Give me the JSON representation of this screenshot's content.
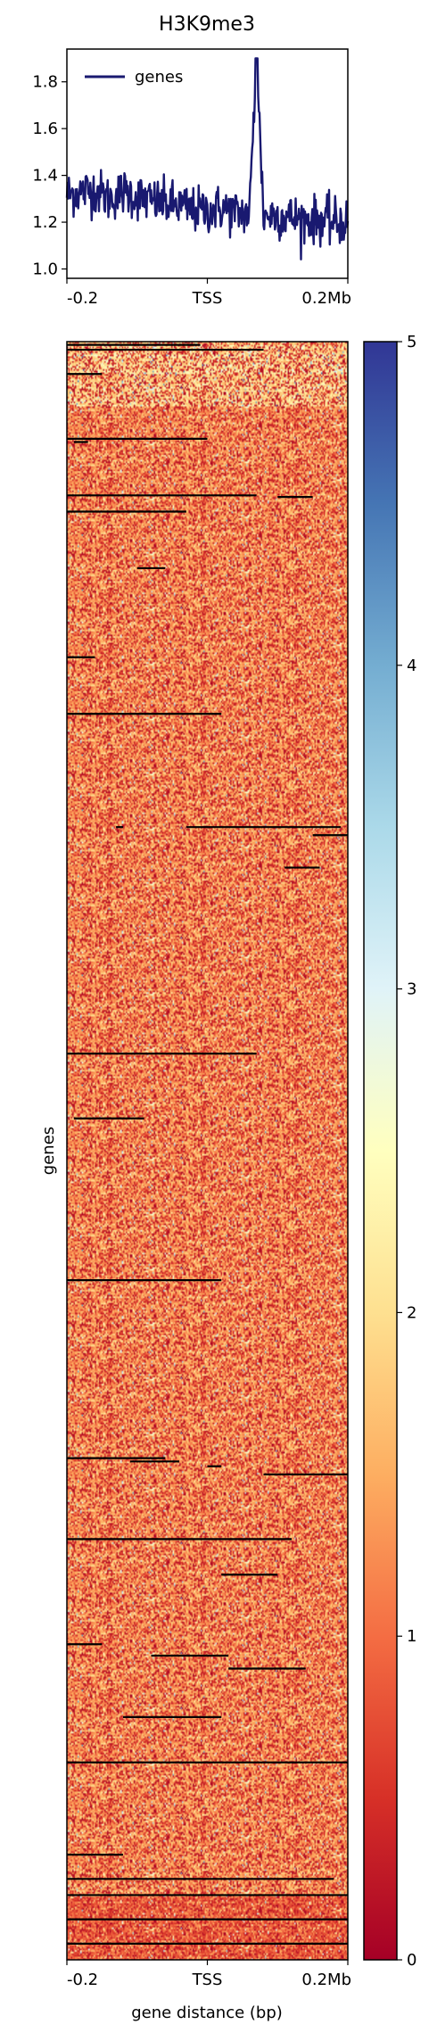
{
  "chart_data": [
    {
      "type": "line",
      "title": "H3K9me3",
      "xlabel": "",
      "ylabel": "",
      "x_tick_labels": [
        "-0.2",
        "TSS",
        "0.2Mb"
      ],
      "x_range": [
        -0.2,
        0.2
      ],
      "x_unit": "Mb",
      "ylim": [
        0.96,
        1.94
      ],
      "y_ticks": [
        1.0,
        1.2,
        1.4,
        1.6,
        1.8
      ],
      "y_tick_labels": [
        "1.0",
        "1.2",
        "1.4",
        "1.6",
        "1.8"
      ],
      "legend_placement": "upper-left",
      "series": [
        {
          "name": "genes",
          "color": "#191970",
          "x": [
            -0.2,
            -0.18,
            -0.16,
            -0.14,
            -0.12,
            -0.1,
            -0.08,
            -0.06,
            -0.04,
            -0.02,
            0.0,
            0.02,
            0.04,
            0.06,
            0.07,
            0.08,
            0.1,
            0.12,
            0.14,
            0.16,
            0.18,
            0.2
          ],
          "values": [
            1.32,
            1.33,
            1.34,
            1.3,
            1.33,
            1.31,
            1.29,
            1.28,
            1.27,
            1.25,
            1.25,
            1.26,
            1.24,
            1.24,
            1.9,
            1.23,
            1.23,
            1.22,
            1.21,
            1.21,
            1.2,
            1.2
          ],
          "noise_amplitude": 0.09,
          "peak": {
            "x": 0.07,
            "y": 1.9
          }
        }
      ]
    },
    {
      "type": "heatmap",
      "xlabel": "gene distance (bp)",
      "ylabel": "genes",
      "x_tick_labels": [
        "-0.2",
        "TSS",
        "0.2Mb"
      ],
      "x_range": [
        -0.2,
        0.2
      ],
      "colorscale": "RdYlBu",
      "colorbar_range": [
        0,
        5
      ],
      "colorbar_ticks": [
        0,
        1,
        2,
        3,
        4,
        5
      ],
      "colorbar_tick_labels": [
        "0",
        "1",
        "2",
        "3",
        "4",
        "5"
      ],
      "colorbar_stops": [
        "#a50026",
        "#d73027",
        "#f46d43",
        "#fdae61",
        "#fee090",
        "#ffffbf",
        "#e0f3f8",
        "#abd9e9",
        "#74add1",
        "#4575b4",
        "#313695"
      ],
      "typical_value": 1.3,
      "black_line_color": "#000000",
      "row_count_visible": 1000,
      "black_rows": [
        {
          "row": 2,
          "x0": -0.2,
          "x1": -0.01
        },
        {
          "row": 5,
          "x0": -0.2,
          "x1": 0.08
        },
        {
          "row": 20,
          "x0": -0.2,
          "x1": -0.15
        },
        {
          "row": 60,
          "x0": -0.2,
          "x1": 0.0
        },
        {
          "row": 62,
          "x0": -0.19,
          "x1": -0.17
        },
        {
          "row": 95,
          "x0": -0.2,
          "x1": 0.07
        },
        {
          "row": 96,
          "x0": 0.1,
          "x1": 0.15
        },
        {
          "row": 105,
          "x0": -0.2,
          "x1": -0.03
        },
        {
          "row": 140,
          "x0": -0.1,
          "x1": -0.06
        },
        {
          "row": 195,
          "x0": -0.2,
          "x1": -0.16
        },
        {
          "row": 230,
          "x0": -0.2,
          "x1": 0.02
        },
        {
          "row": 300,
          "x0": -0.13,
          "x1": -0.12
        },
        {
          "row": 300,
          "x0": -0.03,
          "x1": 0.19
        },
        {
          "row": 305,
          "x0": 0.15,
          "x1": 0.2
        },
        {
          "row": 325,
          "x0": 0.11,
          "x1": 0.16
        },
        {
          "row": 440,
          "x0": -0.2,
          "x1": 0.07
        },
        {
          "row": 480,
          "x0": -0.19,
          "x1": -0.09
        },
        {
          "row": 580,
          "x0": -0.2,
          "x1": 0.02
        },
        {
          "row": 690,
          "x0": -0.2,
          "x1": -0.06
        },
        {
          "row": 692,
          "x0": -0.11,
          "x1": -0.04
        },
        {
          "row": 695,
          "x0": 0.0,
          "x1": 0.02
        },
        {
          "row": 700,
          "x0": 0.08,
          "x1": 0.2
        },
        {
          "row": 740,
          "x0": -0.2,
          "x1": 0.12
        },
        {
          "row": 762,
          "x0": 0.02,
          "x1": 0.1
        },
        {
          "row": 805,
          "x0": -0.2,
          "x1": -0.15
        },
        {
          "row": 812,
          "x0": -0.08,
          "x1": 0.03
        },
        {
          "row": 820,
          "x0": 0.03,
          "x1": 0.14
        },
        {
          "row": 850,
          "x0": -0.12,
          "x1": 0.02
        },
        {
          "row": 878,
          "x0": -0.2,
          "x1": 0.2
        },
        {
          "row": 935,
          "x0": -0.2,
          "x1": -0.12
        },
        {
          "row": 950,
          "x0": -0.2,
          "x1": 0.18
        },
        {
          "row": 960,
          "x0": -0.2,
          "x1": 0.2
        },
        {
          "row": 975,
          "x0": -0.2,
          "x1": 0.2
        },
        {
          "row": 990,
          "x0": -0.2,
          "x1": 0.2
        }
      ]
    }
  ]
}
